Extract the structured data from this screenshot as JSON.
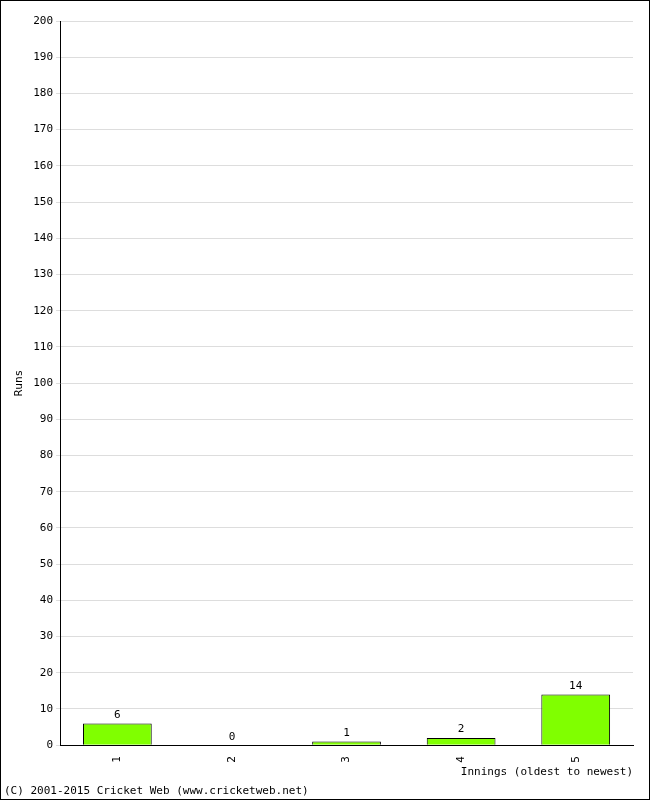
{
  "chart_data": {
    "type": "bar",
    "categories": [
      "1",
      "2",
      "3",
      "4",
      "5"
    ],
    "values": [
      6,
      0,
      1,
      2,
      14
    ],
    "color": "#80ff00",
    "x_label": "Innings (oldest to newest)",
    "y_label": "Runs",
    "ylim": [
      0,
      200
    ],
    "yticks": [
      0,
      10,
      20,
      30,
      40,
      50,
      60,
      70,
      80,
      90,
      100,
      110,
      120,
      130,
      140,
      150,
      160,
      170,
      180,
      190,
      200
    ],
    "grid": true,
    "data_labels": true,
    "annotations": [
      "(C) 2001-2015 Cricket Web (www.cricketweb.net)"
    ]
  }
}
